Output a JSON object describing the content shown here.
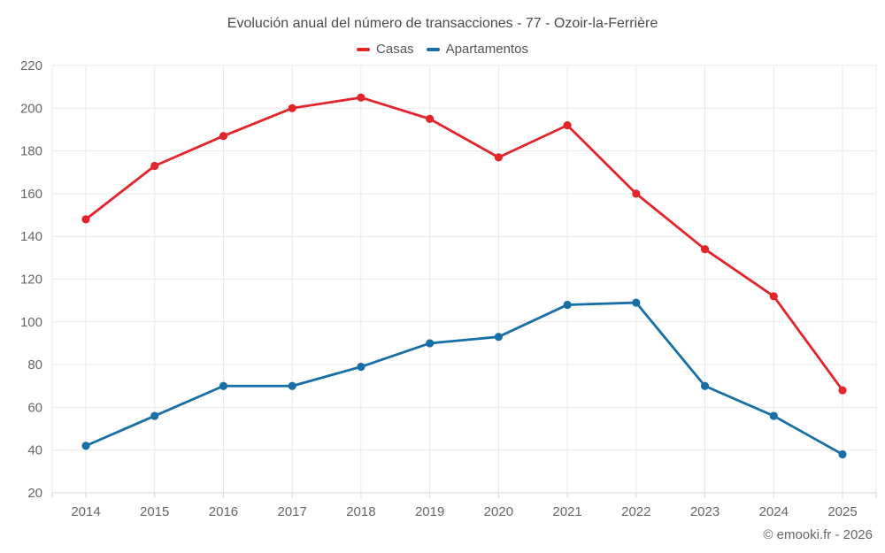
{
  "title": "Evolución anual del número de transacciones - 77 - Ozoir-la-Ferrière",
  "footer": "© emooki.fr - 2026",
  "legend": [
    {
      "label": "Casas",
      "color": "#e2242b"
    },
    {
      "label": "Apartamentos",
      "color": "#186fa5"
    }
  ],
  "colors": {
    "casas_red": "#e2242b",
    "apartamentos_blue": "#186fa5",
    "gridline": "#e9e9e9",
    "axis_line": "#d6d6d6",
    "title_text": "#4a4a4a",
    "tick_text": "#666666"
  },
  "chart_data": {
    "type": "line",
    "title": "Evolución anual del número de transacciones - 77 - Ozoir-la-Ferrière",
    "x": [
      2014,
      2015,
      2016,
      2017,
      2018,
      2019,
      2020,
      2021,
      2022,
      2023,
      2024,
      2025
    ],
    "series": [
      {
        "name": "Casas",
        "color": "#e2242b",
        "values": [
          148,
          173,
          187,
          200,
          205,
          195,
          177,
          192,
          160,
          134,
          112,
          68
        ]
      },
      {
        "name": "Apartamentos",
        "color": "#186fa5",
        "values": [
          42,
          56,
          70,
          70,
          79,
          90,
          93,
          108,
          109,
          70,
          56,
          38
        ]
      }
    ],
    "xlabel": "",
    "ylabel": "",
    "ylim": [
      20,
      220
    ],
    "ytick_step": 20,
    "grid": true,
    "legend_position": "top",
    "marker": "circle"
  }
}
